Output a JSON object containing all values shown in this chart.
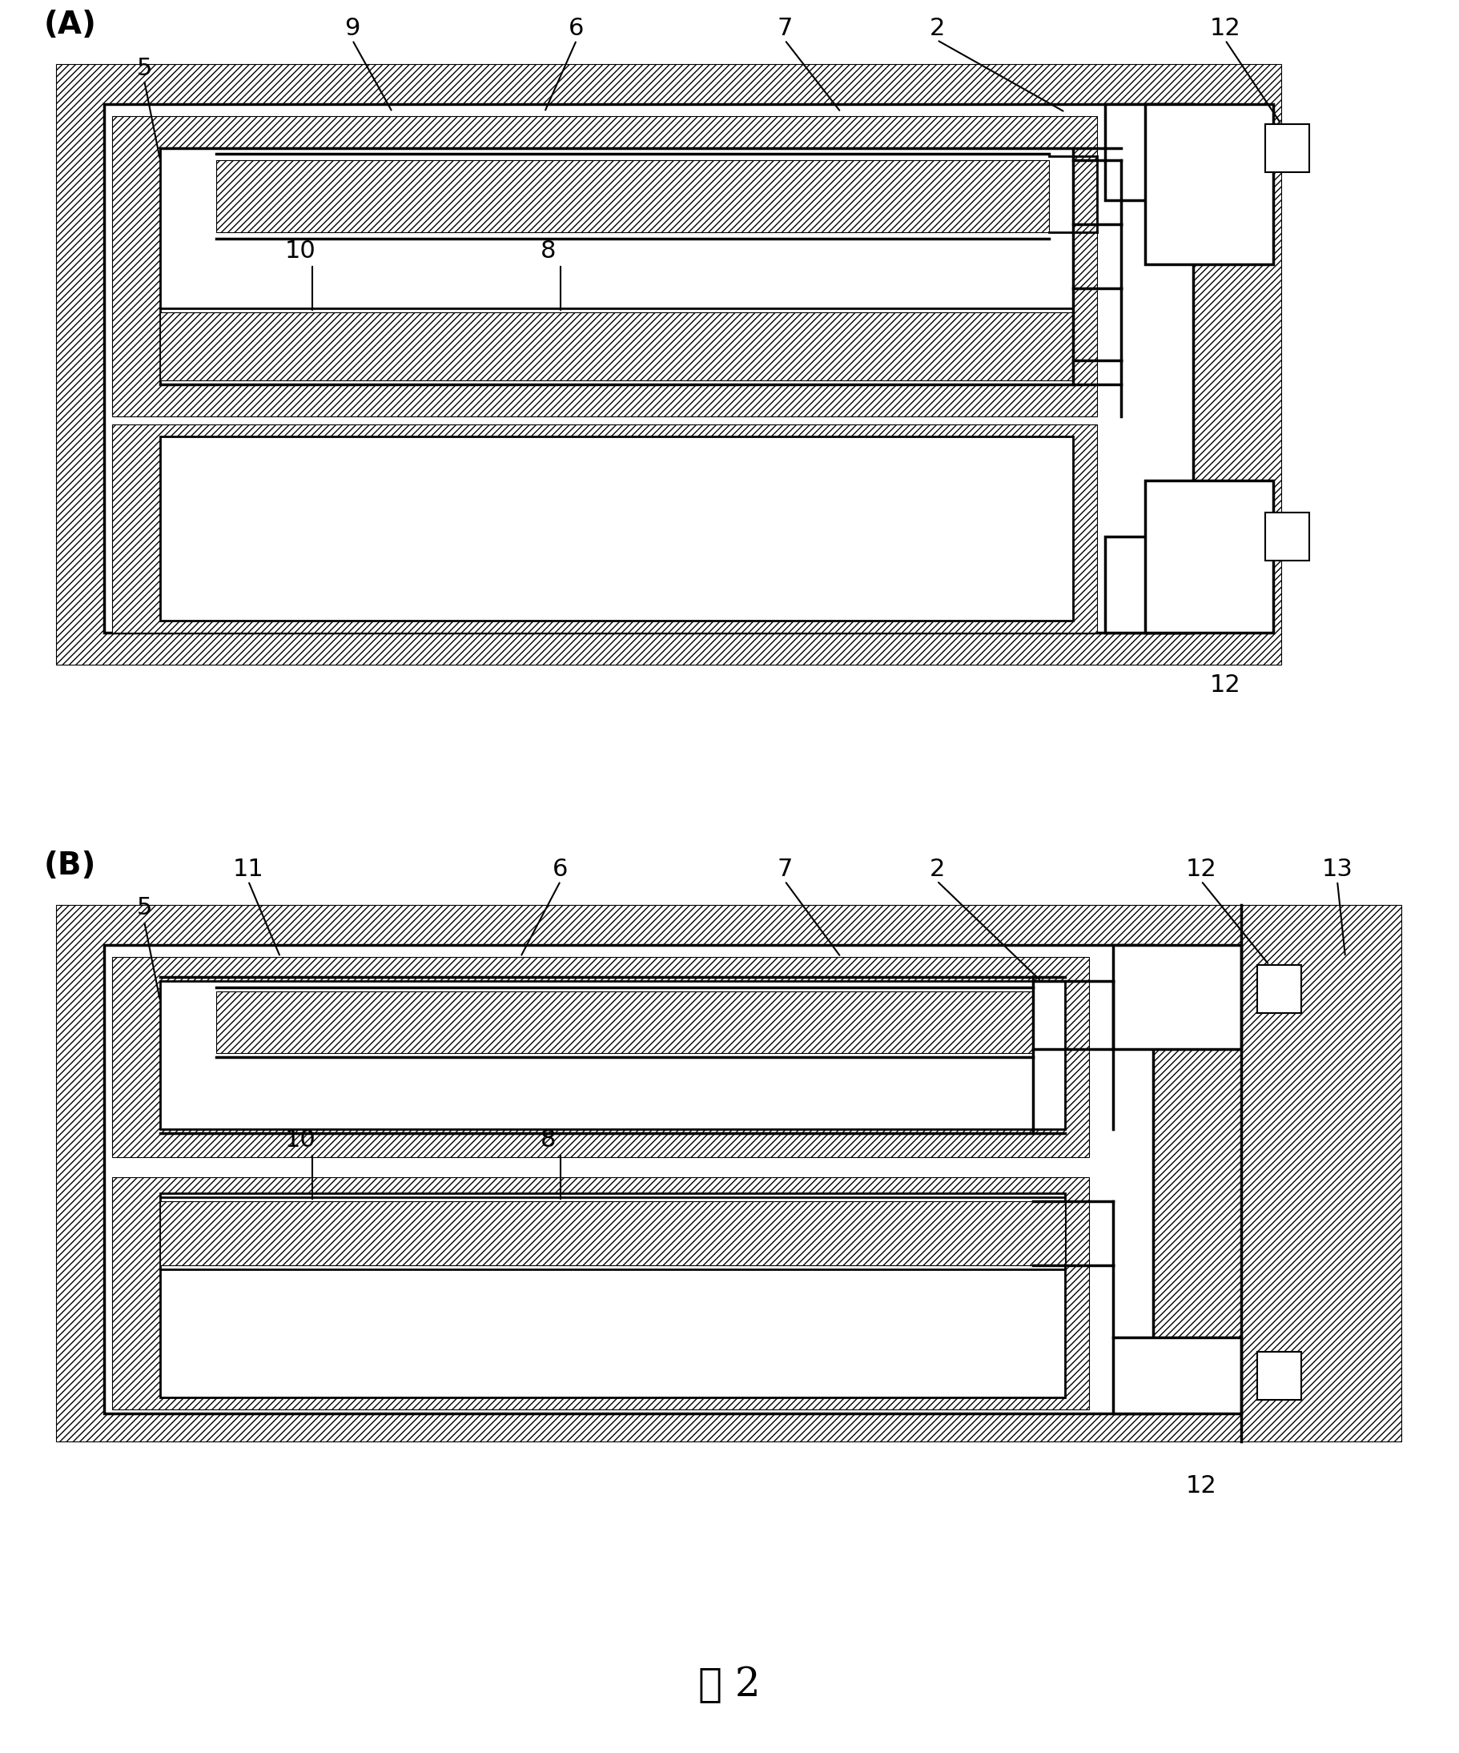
{
  "bg_color": "#ffffff",
  "label_A": "(A)",
  "label_B": "(B)",
  "figure_label": "图 2"
}
